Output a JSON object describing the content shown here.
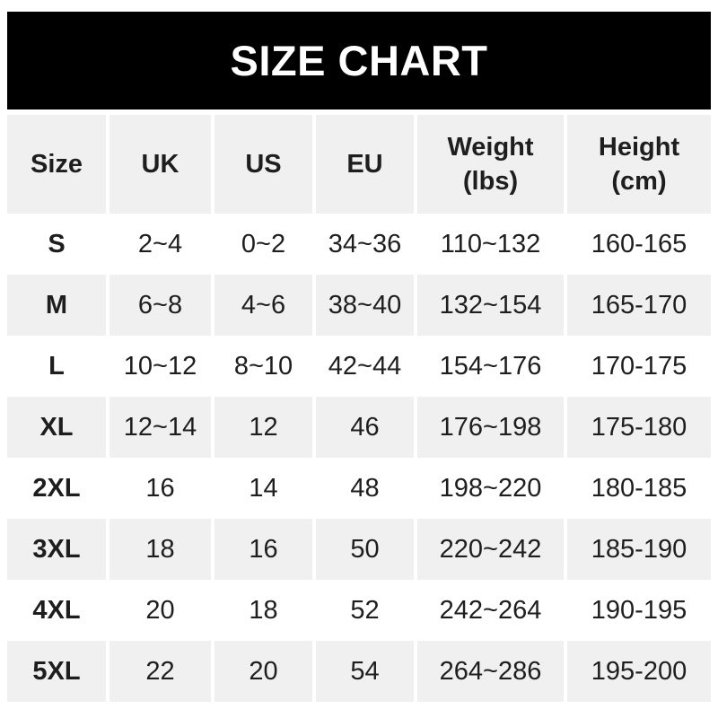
{
  "title": "SIZE CHART",
  "colors": {
    "banner_bg": "#000000",
    "banner_text": "#ffffff",
    "row_alt_bg": "#f0f0f0",
    "row_bg": "#ffffff",
    "text": "#1e1e1e"
  },
  "chart_data": {
    "type": "table",
    "title": "SIZE CHART",
    "columns": [
      {
        "label": "Size"
      },
      {
        "label": "UK"
      },
      {
        "label": "US"
      },
      {
        "label": "EU"
      },
      {
        "label": "Weight",
        "sub": "(lbs)"
      },
      {
        "label": "Height",
        "sub": "(cm)"
      }
    ],
    "rows": [
      [
        "S",
        "2~4",
        "0~2",
        "34~36",
        "110~132",
        "160-165"
      ],
      [
        "M",
        "6~8",
        "4~6",
        "38~40",
        "132~154",
        "165-170"
      ],
      [
        "L",
        "10~12",
        "8~10",
        "42~44",
        "154~176",
        "170-175"
      ],
      [
        "XL",
        "12~14",
        "12",
        "46",
        "176~198",
        "175-180"
      ],
      [
        "2XL",
        "16",
        "14",
        "48",
        "198~220",
        "180-185"
      ],
      [
        "3XL",
        "18",
        "16",
        "50",
        "220~242",
        "185-190"
      ],
      [
        "4XL",
        "20",
        "18",
        "52",
        "242~264",
        "190-195"
      ],
      [
        "5XL",
        "22",
        "20",
        "54",
        "264~286",
        "195-200"
      ]
    ]
  }
}
